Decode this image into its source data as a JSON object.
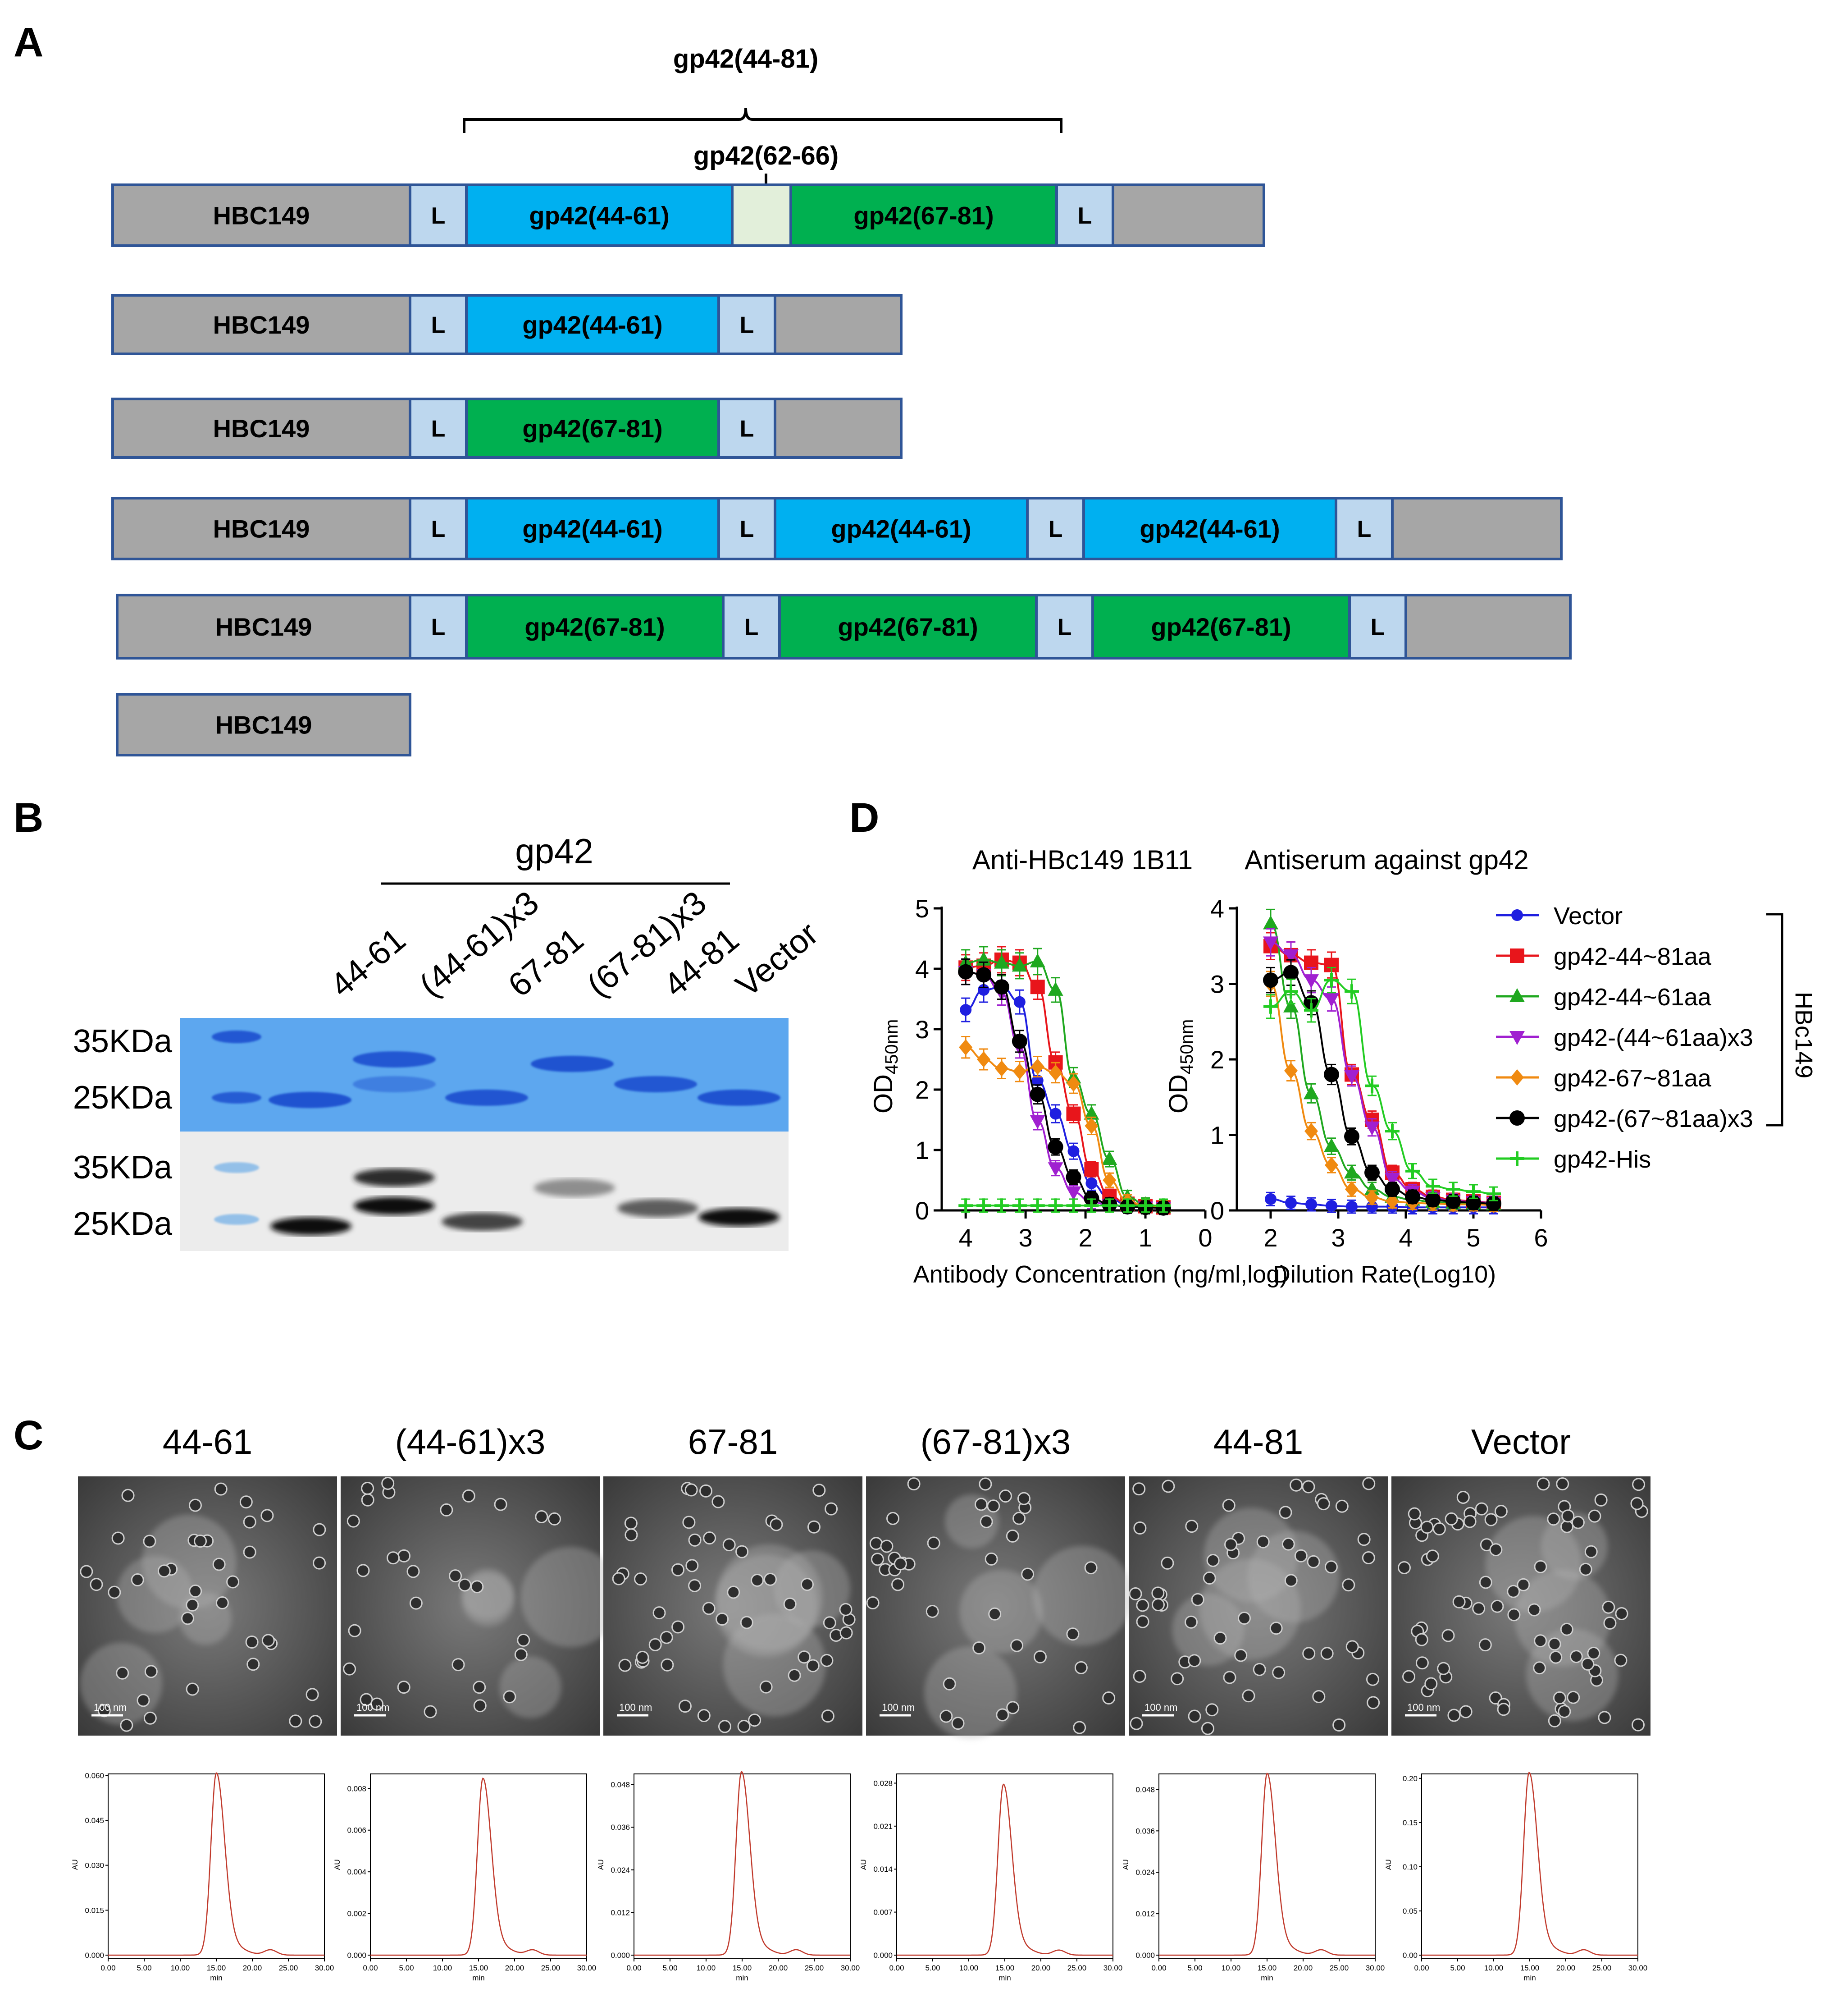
{
  "panels": {
    "a": "A",
    "b": "B",
    "c": "C",
    "d": "D"
  },
  "construct_map": {
    "bracket_top": "gp42(44-81)",
    "bracket_mid": "gp42(62-66)",
    "core": "HBC149",
    "linker": "L",
    "seg_44_61": "gp42(44-61)",
    "seg_67_81": "gp42(67-81)"
  },
  "colors": {
    "core": "#a6a6a6",
    "linker": "#bdd7ee",
    "seg_44_61": "#00b0f0",
    "seg_67_81": "#00b050",
    "seg_62_66": "#e2efda",
    "border": "#2f5597",
    "series": {
      "Vector": "#1f1fe0",
      "gp42-44~81aa": "#e8151b",
      "gp42-44~61aa": "#1fa81f",
      "gp42-(44~61aa)x3": "#a020d0",
      "gp42-67~81aa": "#f08a10",
      "gp42-(67~81aa)x3": "#000000",
      "gp42-His": "#22cc22"
    }
  },
  "gel": {
    "group_label": "gp42",
    "lanes": [
      "44-61",
      "(44-61)x3",
      "67-81",
      "(67-81)x3",
      "44-81",
      "Vector"
    ],
    "markers": [
      "35KDa",
      "25KDa"
    ]
  },
  "tem": {
    "titles": [
      "44-61",
      "(44-61)x3",
      "67-81",
      "(67-81)x3",
      "44-81",
      "Vector"
    ],
    "scale_text": "100 nm"
  },
  "hplc": {
    "ylabel": "AU",
    "xlabel": "min",
    "xticks": [
      "0.00",
      "5.00",
      "10.00",
      "15.00",
      "20.00",
      "25.00",
      "30.00"
    ],
    "plots": [
      {
        "yticks": [
          "0.000",
          "0.015",
          "0.030",
          "0.045",
          "0.060"
        ],
        "peak_x": 15.0,
        "peak_y": 0.0595,
        "ymax": 0.0605
      },
      {
        "yticks": [
          "0.000",
          "0.002",
          "0.004",
          "0.006",
          "0.008"
        ],
        "peak_x": 15.6,
        "peak_y": 0.0083,
        "ymax": 0.0087
      },
      {
        "yticks": [
          "0.000",
          "0.012",
          "0.024",
          "0.036",
          "0.048"
        ],
        "peak_x": 14.9,
        "peak_y": 0.0505,
        "ymax": 0.051
      },
      {
        "yticks": [
          "0.000",
          "0.007",
          "0.014",
          "0.021",
          "0.028"
        ],
        "peak_x": 14.8,
        "peak_y": 0.0272,
        "ymax": 0.0295
      },
      {
        "yticks": [
          "0.000",
          "0.012",
          "0.024",
          "0.036",
          "0.048"
        ],
        "peak_x": 15.0,
        "peak_y": 0.0515,
        "ymax": 0.0525
      },
      {
        "yticks": [
          "0.00",
          "0.05",
          "0.10",
          "0.15",
          "0.20"
        ],
        "peak_x": 14.9,
        "peak_y": 0.202,
        "ymax": 0.205
      }
    ]
  },
  "chart_data": [
    {
      "type": "line",
      "title": "Anti-HBc149 1B11",
      "xlabel": "Antibody Concentration (ng/ml,log)",
      "ylabel": "OD450nm",
      "ylabel_main": "OD",
      "ylabel_sub": "450nm",
      "xlim": [
        4.4,
        0
      ],
      "ylim": [
        0,
        5
      ],
      "xticks": [
        "4",
        "3",
        "2",
        "1",
        "0"
      ],
      "yticks": [
        "0",
        "1",
        "2",
        "3",
        "4",
        "5"
      ],
      "x": [
        4.0,
        3.7,
        3.4,
        3.1,
        2.8,
        2.5,
        2.2,
        1.9,
        1.6,
        1.3,
        1.0,
        0.7
      ],
      "series": [
        {
          "name": "Vector",
          "values": [
            3.32,
            3.65,
            3.7,
            3.45,
            2.15,
            1.6,
            0.98,
            0.45,
            0.2,
            0.09,
            0.06,
            0.04
          ]
        },
        {
          "name": "gp42-44~81aa",
          "values": [
            4.02,
            4.05,
            4.15,
            4.1,
            3.7,
            2.45,
            1.6,
            0.68,
            0.24,
            0.11,
            0.07,
            0.05
          ]
        },
        {
          "name": "gp42-44~61aa",
          "values": [
            4.1,
            4.15,
            4.1,
            4.05,
            4.12,
            3.65,
            2.2,
            1.6,
            0.85,
            0.22,
            0.1,
            0.06
          ]
        },
        {
          "name": "gp42-(44~61aa)x3",
          "values": [
            3.95,
            3.9,
            3.6,
            2.7,
            1.48,
            0.7,
            0.3,
            0.14,
            0.09,
            0.06,
            0.05,
            0.04
          ]
        },
        {
          "name": "gp42-67~81aa",
          "values": [
            2.7,
            2.5,
            2.35,
            2.3,
            2.38,
            2.28,
            2.1,
            1.4,
            0.5,
            0.15,
            0.08,
            0.05
          ]
        },
        {
          "name": "gp42-(67~81aa)x3",
          "values": [
            3.95,
            3.9,
            3.7,
            2.8,
            1.92,
            1.05,
            0.55,
            0.2,
            0.1,
            0.06,
            0.05,
            0.04
          ]
        },
        {
          "name": "gp42-His",
          "values": [
            0.08,
            0.08,
            0.08,
            0.08,
            0.08,
            0.08,
            0.08,
            0.08,
            0.08,
            0.08,
            0.08,
            0.08
          ]
        }
      ]
    },
    {
      "type": "line",
      "title": "Antiserum against gp42",
      "xlabel": "Dilution Rate(Log10)",
      "ylabel": "OD450nm",
      "ylabel_main": "OD",
      "ylabel_sub": "450nm",
      "xlim": [
        1.5,
        6
      ],
      "ylim": [
        0,
        4
      ],
      "xticks": [
        "2",
        "3",
        "4",
        "5",
        "6"
      ],
      "yticks": [
        "0",
        "1",
        "2",
        "3",
        "4"
      ],
      "x": [
        2.0,
        2.3,
        2.6,
        2.9,
        3.2,
        3.5,
        3.8,
        4.1,
        4.4,
        4.7,
        5.0,
        5.3
      ],
      "series": [
        {
          "name": "Vector",
          "values": [
            0.15,
            0.1,
            0.08,
            0.06,
            0.05,
            0.05,
            0.05,
            0.04,
            0.04,
            0.04,
            0.04,
            0.04
          ]
        },
        {
          "name": "gp42-44~81aa",
          "values": [
            3.5,
            3.38,
            3.28,
            3.25,
            1.8,
            1.2,
            0.5,
            0.28,
            0.18,
            0.14,
            0.12,
            0.1
          ]
        },
        {
          "name": "gp42-44~61aa",
          "values": [
            3.8,
            2.7,
            1.55,
            0.85,
            0.5,
            0.28,
            0.18,
            0.14,
            0.11,
            0.1,
            0.09,
            0.08
          ]
        },
        {
          "name": "gp42-(44~61aa)x3",
          "values": [
            3.55,
            3.38,
            3.05,
            2.8,
            1.78,
            1.1,
            0.42,
            0.25,
            0.16,
            0.13,
            0.11,
            0.1
          ]
        },
        {
          "name": "gp42-67~81aa",
          "values": [
            3.0,
            1.85,
            1.05,
            0.6,
            0.28,
            0.17,
            0.12,
            0.1,
            0.09,
            0.08,
            0.08,
            0.07
          ]
        },
        {
          "name": "gp42-(67~81aa)x3",
          "values": [
            3.05,
            3.15,
            2.75,
            1.8,
            0.98,
            0.5,
            0.28,
            0.18,
            0.14,
            0.12,
            0.1,
            0.09
          ]
        },
        {
          "name": "gp42-His",
          "values": [
            2.7,
            2.9,
            2.65,
            3.05,
            2.9,
            1.65,
            1.05,
            0.52,
            0.32,
            0.28,
            0.25,
            0.22
          ]
        }
      ],
      "group_label": "HBc149"
    }
  ]
}
